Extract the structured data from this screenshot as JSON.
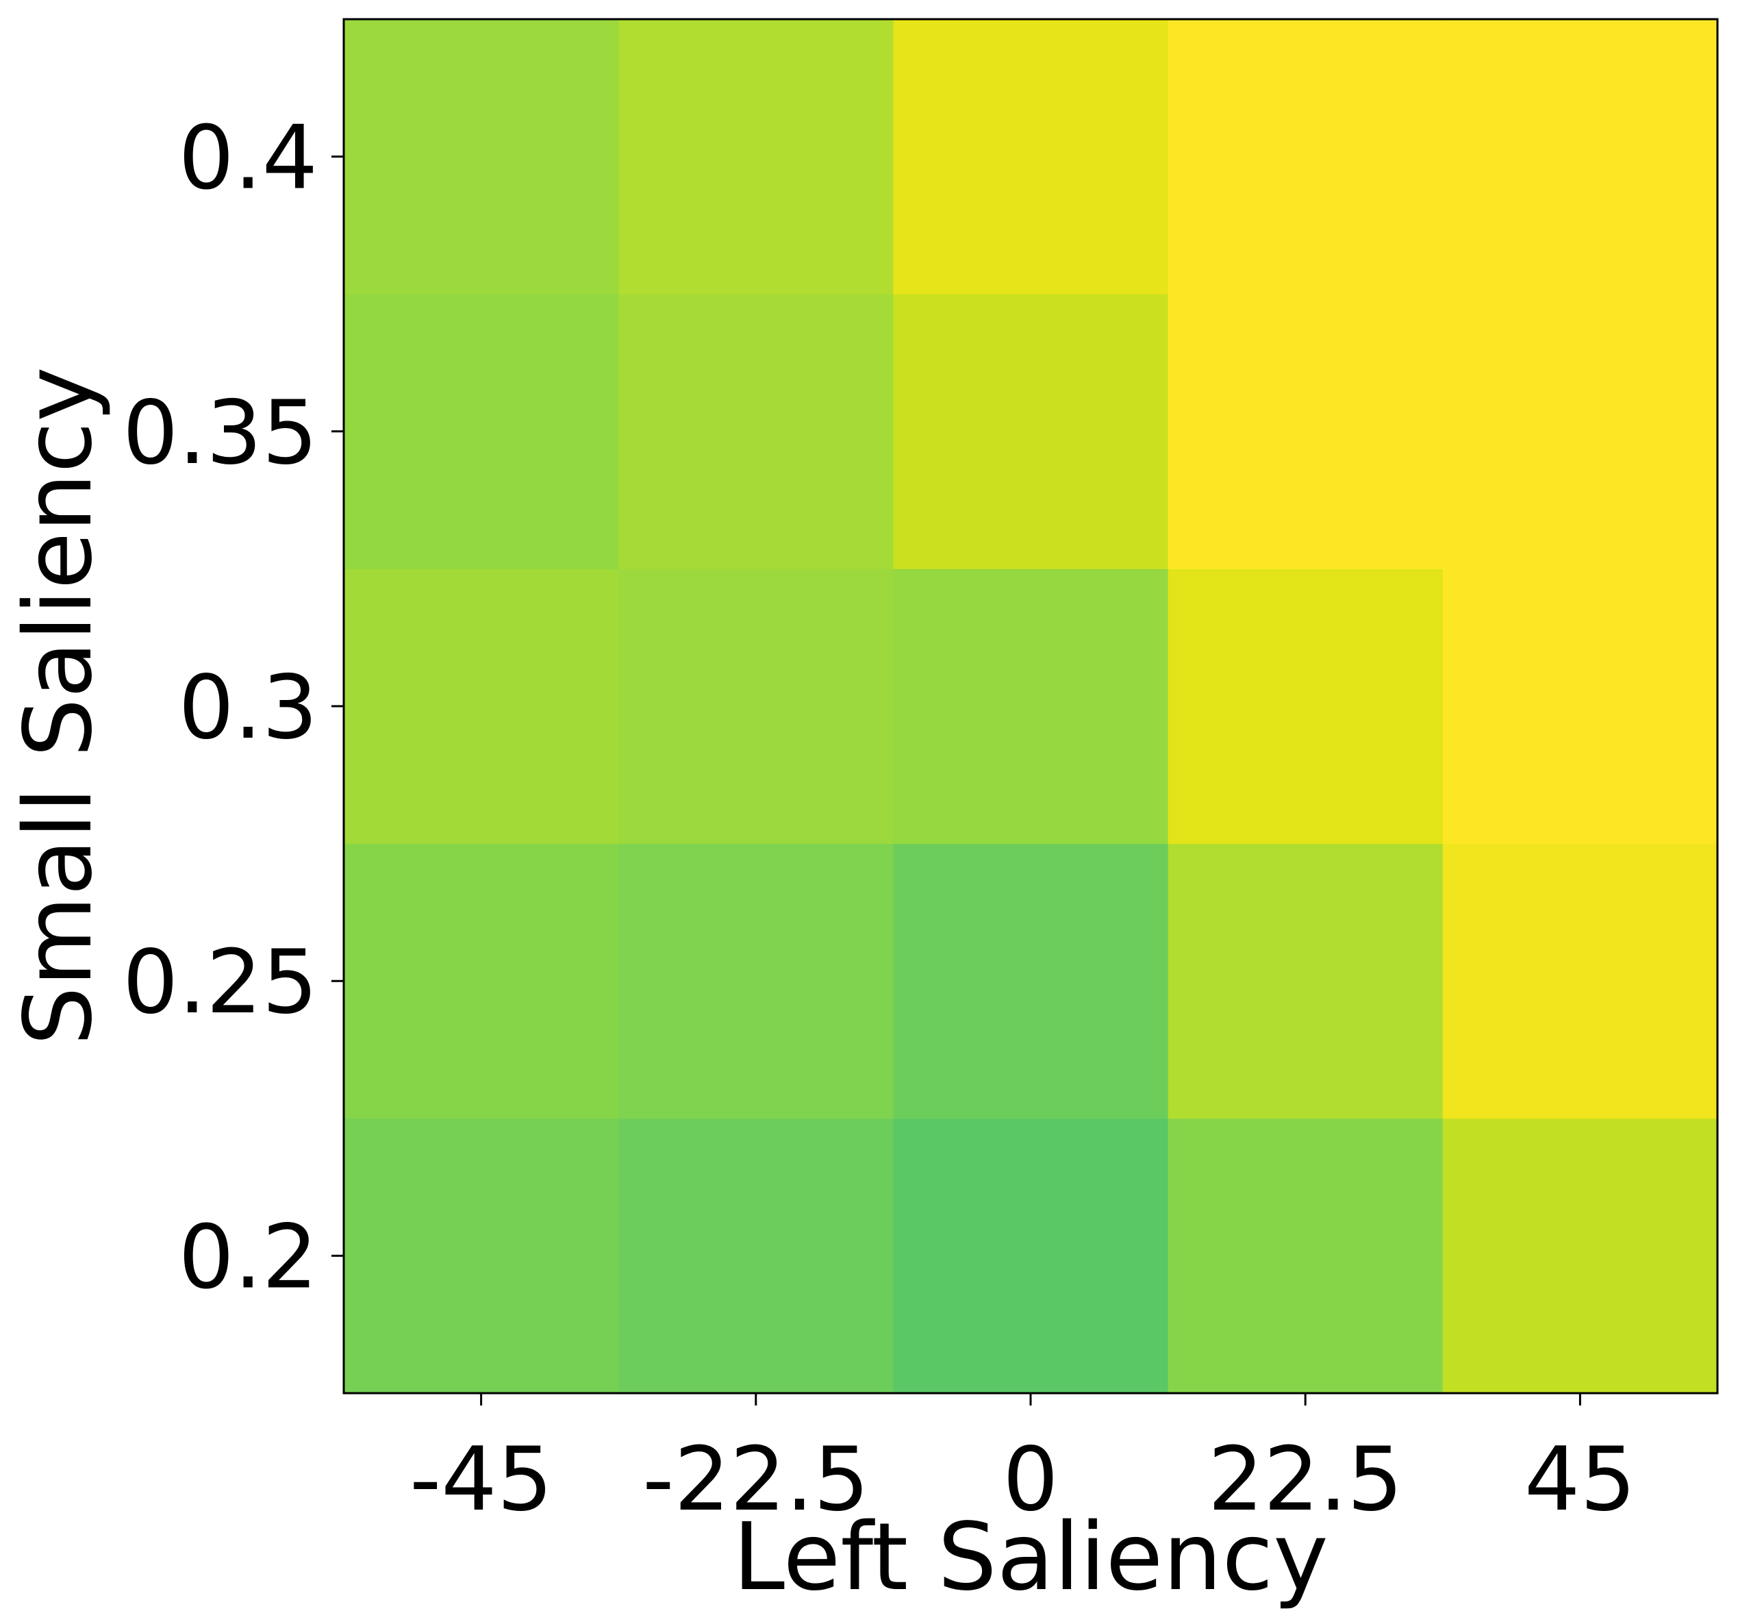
{
  "chart_data": {
    "type": "heatmap",
    "title": "",
    "xlabel": "Left Saliency",
    "ylabel": "Small Saliency",
    "x": [
      -45,
      -22.5,
      0,
      22.5,
      45
    ],
    "x_tick_labels": [
      "-45",
      "-22.5",
      "0",
      "22.5",
      "45"
    ],
    "y": [
      0.2,
      0.25,
      0.3,
      0.35,
      0.4
    ],
    "y_tick_labels": [
      "0.2",
      "0.25",
      "0.3",
      "0.35",
      "0.4"
    ],
    "colormap": "viridis",
    "grid": false,
    "colorbar": false,
    "values": [
      [
        0.78,
        0.76,
        0.72,
        0.82,
        0.88
      ],
      [
        0.81,
        0.8,
        0.77,
        0.87,
        0.98
      ],
      [
        0.83,
        0.82,
        0.81,
        0.95,
        0.99
      ],
      [
        0.82,
        0.85,
        0.89,
        1.0,
        1.0
      ],
      [
        0.84,
        0.87,
        0.94,
        1.0,
        1.0
      ]
    ],
    "cell_colors": [
      [
        "#75d054",
        "#6ccd5a",
        "#5ac864",
        "#86d549",
        "#c2df23"
      ],
      [
        "#86d549",
        "#7fd34e",
        "#6ccd5a",
        "#b0dd2f",
        "#f1e51d"
      ],
      [
        "#a2da37",
        "#9bd93c",
        "#95d840",
        "#e2e418",
        "#fde725"
      ],
      [
        "#93d741",
        "#a5db36",
        "#cae11f",
        "#fde725",
        "#fde725"
      ],
      [
        "#9bd93c",
        "#b0dd2f",
        "#e7e419",
        "#fde725",
        "#fde725"
      ]
    ]
  }
}
